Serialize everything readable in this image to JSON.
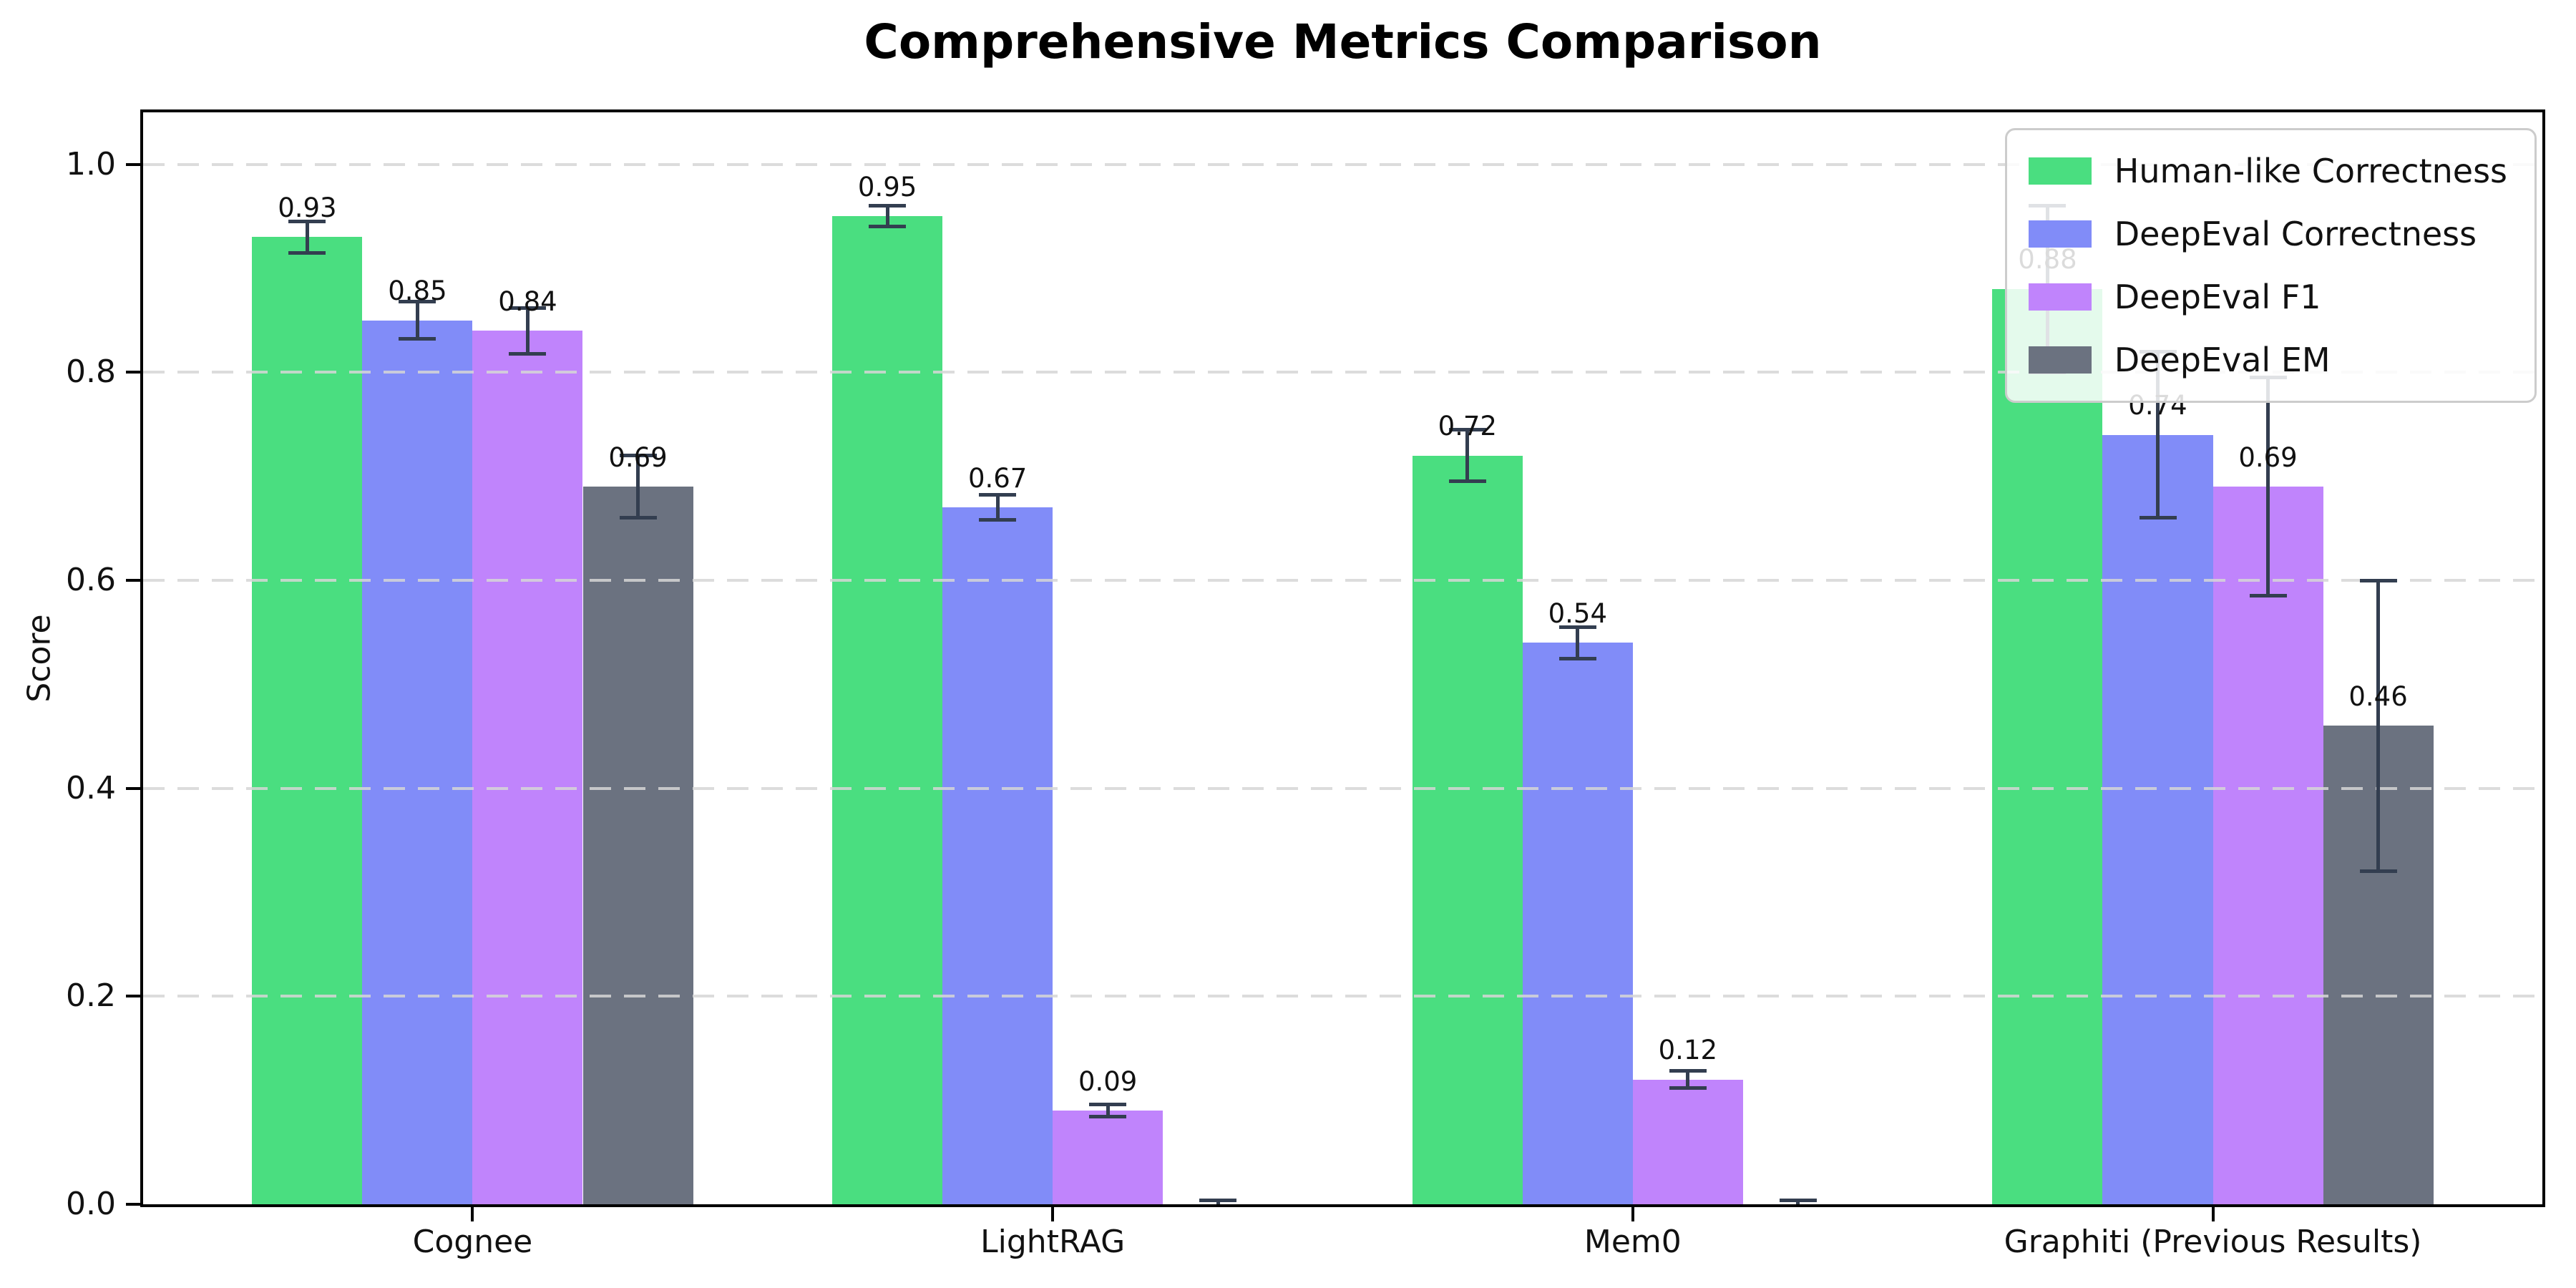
{
  "page": {
    "background": "#ffffff"
  },
  "chart_data": {
    "type": "bar",
    "title": "Comprehensive Metrics Comparison",
    "xlabel": "",
    "ylabel": "Score",
    "categories": [
      "Cognee",
      "LightRAG",
      "Mem0",
      "Graphiti (Previous Results)"
    ],
    "series": [
      {
        "name": "Human-like Correctness",
        "color": "#4ade80",
        "values": [
          0.93,
          0.95,
          0.72,
          0.88
        ],
        "errors": [
          0.015,
          0.01,
          0.025,
          0.08
        ],
        "value_labels": [
          "0.93",
          "0.95",
          "0.72",
          "0.88"
        ]
      },
      {
        "name": "DeepEval Correctness",
        "color": "#818cf8",
        "values": [
          0.85,
          0.67,
          0.54,
          0.74
        ],
        "errors": [
          0.018,
          0.012,
          0.015,
          0.08
        ],
        "value_labels": [
          "0.85",
          "0.67",
          "0.54",
          "0.74"
        ]
      },
      {
        "name": "DeepEval F1",
        "color": "#c084fc",
        "values": [
          0.84,
          0.09,
          0.12,
          0.69
        ],
        "errors": [
          0.022,
          0.006,
          0.008,
          0.105
        ],
        "value_labels": [
          "0.84",
          "0.09",
          "0.12",
          "0.69"
        ]
      },
      {
        "name": "DeepEval EM",
        "color": "#6b7280",
        "values": [
          0.69,
          0.0,
          0.0,
          0.46
        ],
        "errors": [
          0.03,
          0.004,
          0.004,
          0.14
        ],
        "value_labels": [
          "0.69",
          "",
          "",
          "0.46"
        ]
      }
    ],
    "ylim": [
      0,
      1.05
    ],
    "yticks": [
      0.0,
      0.2,
      0.4,
      0.6,
      0.8,
      1.0
    ],
    "ytick_labels": [
      "0.0",
      "0.2",
      "0.4",
      "0.6",
      "0.8",
      "1.0"
    ],
    "grid": {
      "axis": "y",
      "style": "dashed",
      "color": "#d6d6d6"
    },
    "legend": {
      "position": "upper right"
    },
    "style": {
      "error_bar_color": "#333e50",
      "spine_color": "#000000",
      "tick_label_color": "#111111",
      "bar_label_color": "#111111"
    }
  }
}
